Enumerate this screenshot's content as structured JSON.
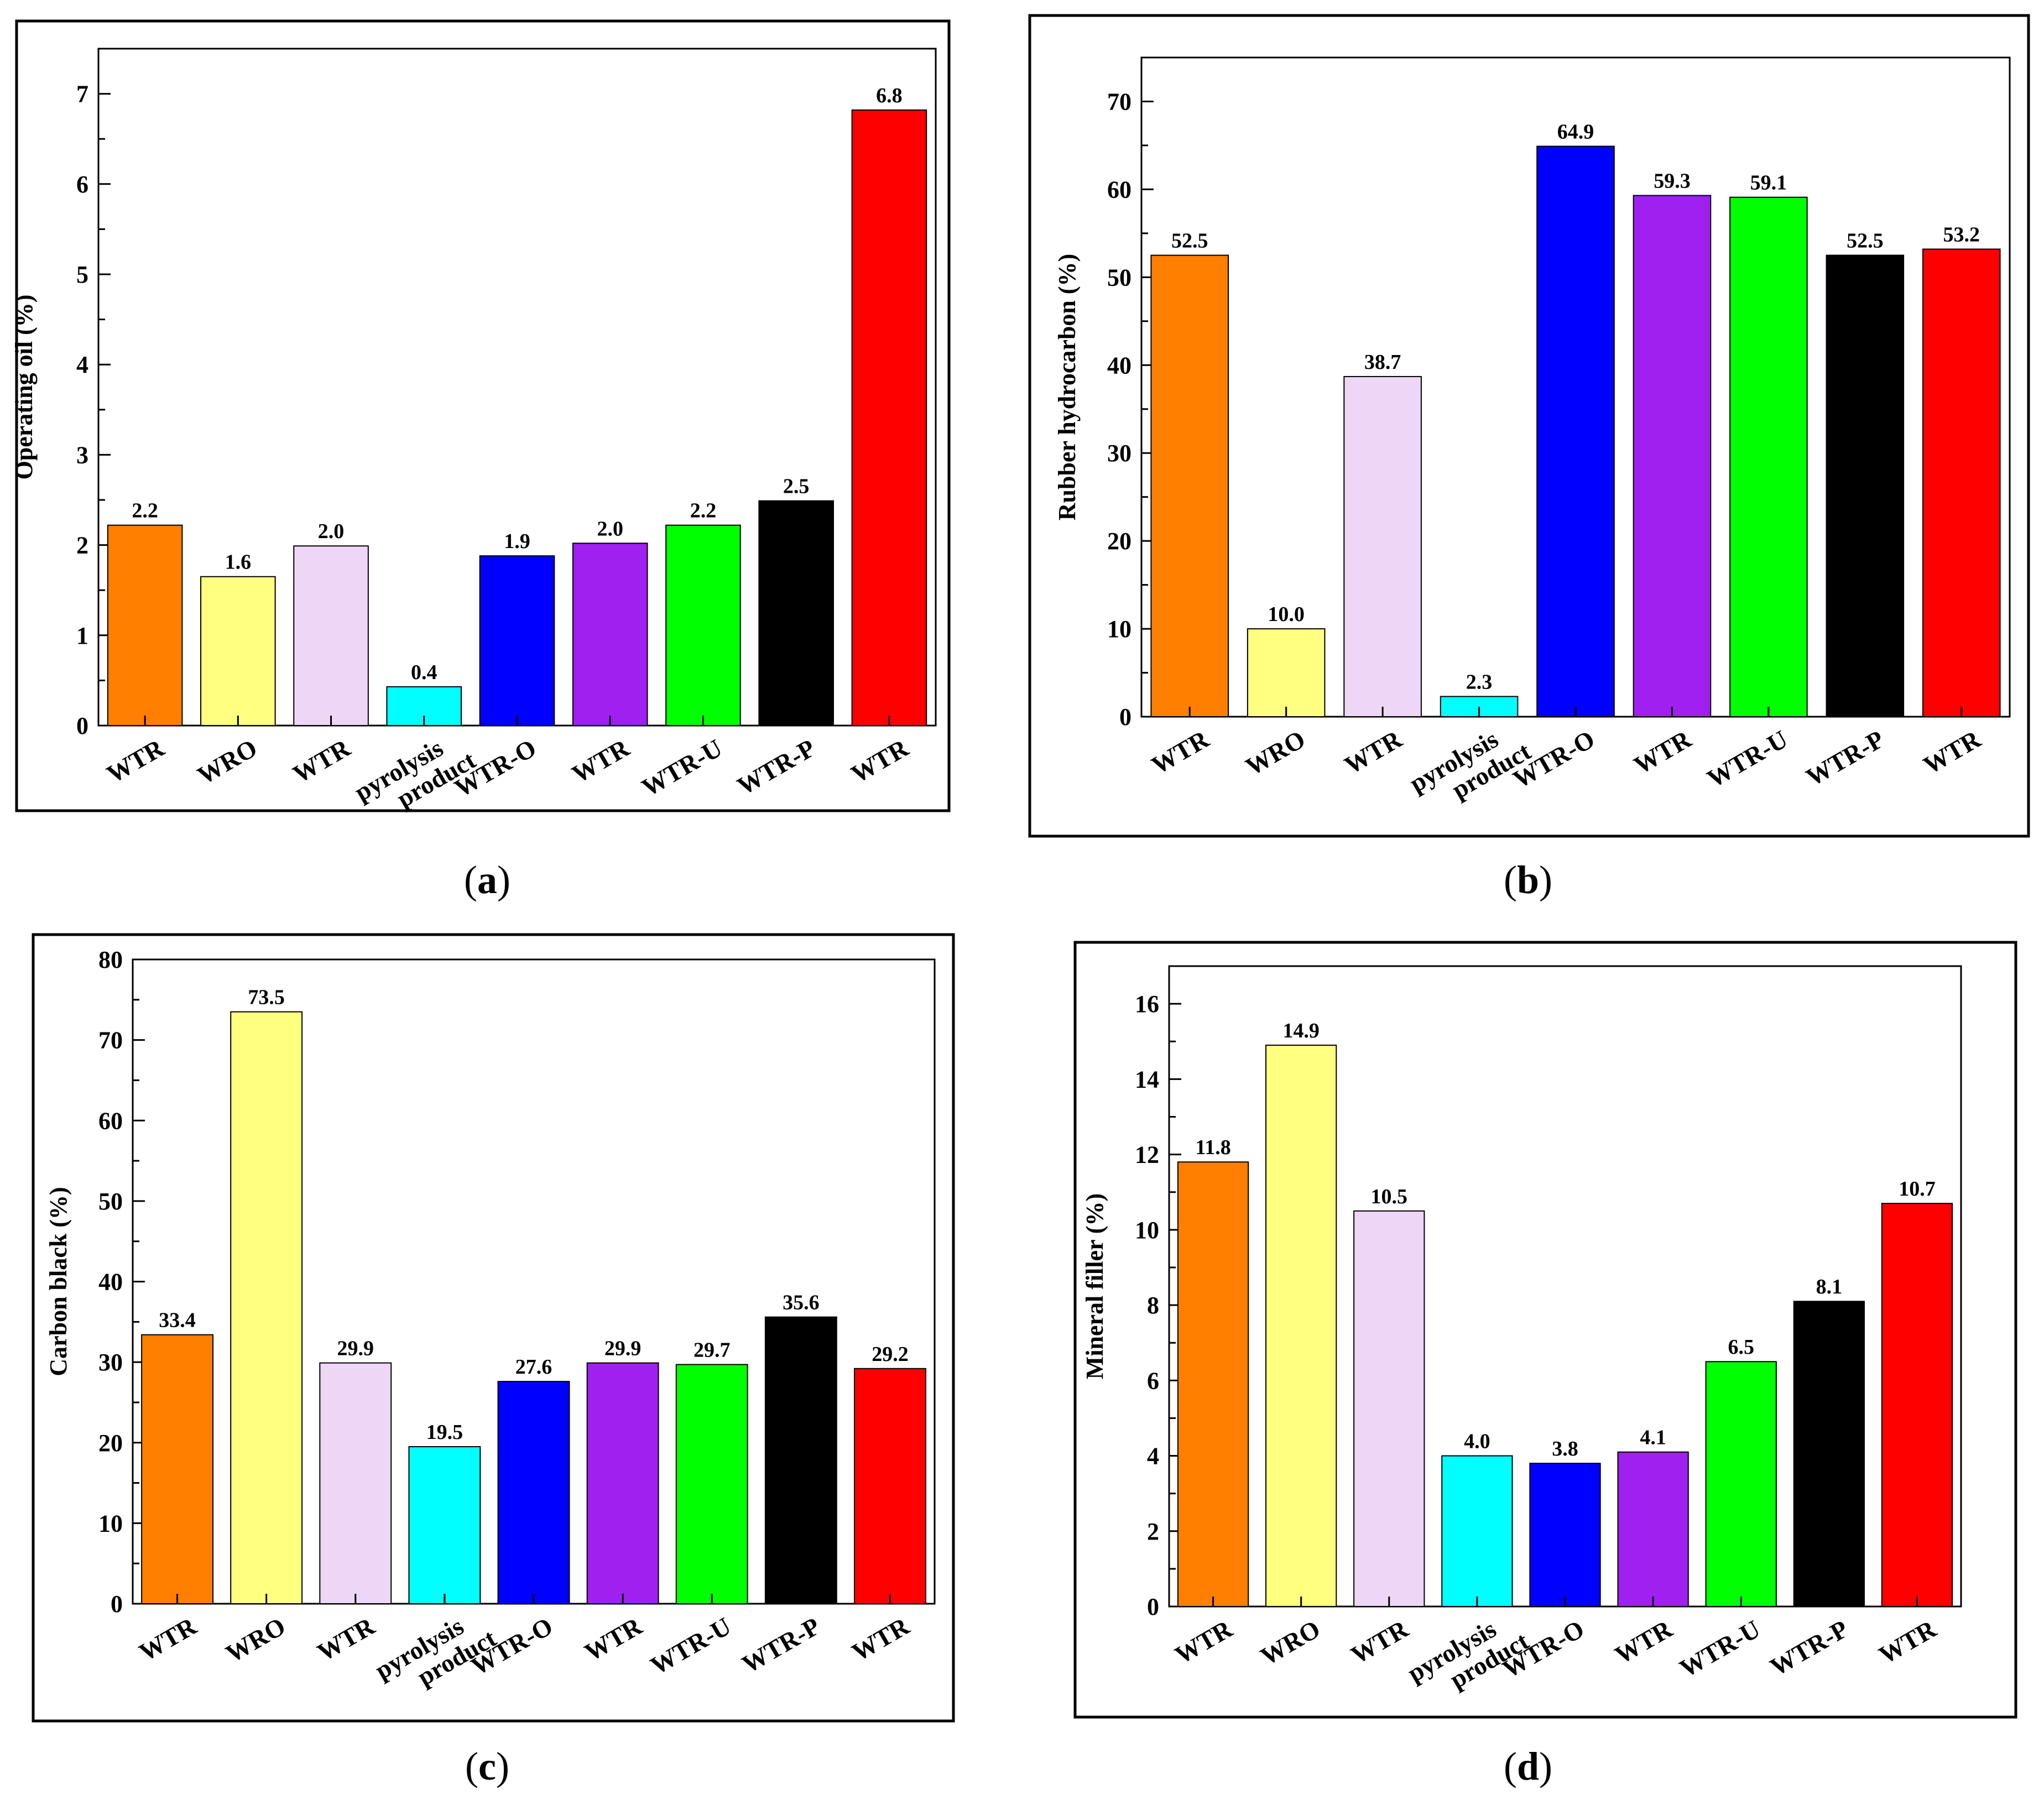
{
  "chart_data": [
    {
      "type": "bar",
      "panel": "(a)",
      "ylabel": "Operating oil (%)",
      "ylim": [
        0,
        7.5
      ],
      "yticks": [
        0,
        1,
        2,
        3,
        4,
        5,
        6,
        7
      ],
      "categories": [
        "WTR",
        "WRO",
        "WTR",
        "pyrolysis product",
        "WTR-O",
        "WTR",
        "WTR-U",
        "WTR-P",
        "WTR"
      ],
      "values": [
        2.2,
        1.6,
        2.0,
        0.4,
        1.9,
        2.0,
        2.2,
        2.5,
        6.8
      ],
      "display_values": [
        2.22,
        1.65,
        1.99,
        0.43,
        1.88,
        2.02,
        2.22,
        2.49,
        6.82
      ],
      "labels": [
        "2.2",
        "1.6",
        "2.0",
        "0.4",
        "1.9",
        "2.0",
        "2.2",
        "2.5",
        "6.8"
      ],
      "colors": [
        "#FF7F00",
        "#FFFF80",
        "#EED6F7",
        "#00FFFF",
        "#0000FF",
        "#A020F0",
        "#00FF00",
        "#000000",
        "#FF0000"
      ]
    },
    {
      "type": "bar",
      "panel": "(b)",
      "ylabel": "Rubber hydrocarbon (%)",
      "ylim": [
        0,
        75
      ],
      "yticks": [
        0,
        10,
        20,
        30,
        40,
        50,
        60,
        70
      ],
      "categories": [
        "WTR",
        "WRO",
        "WTR",
        "pyrolysis product",
        "WTR-O",
        "WTR",
        "WTR-U",
        "WTR-P",
        "WTR"
      ],
      "values": [
        52.5,
        10.0,
        38.7,
        2.3,
        64.9,
        59.3,
        59.1,
        52.5,
        53.2
      ],
      "labels": [
        "52.5",
        "10.0",
        "38.7",
        "2.3",
        "64.9",
        "59.3",
        "59.1",
        "52.5",
        "53.2"
      ],
      "colors": [
        "#FF7F00",
        "#FFFF80",
        "#EED6F7",
        "#00FFFF",
        "#0000FF",
        "#A020F0",
        "#00FF00",
        "#000000",
        "#FF0000"
      ]
    },
    {
      "type": "bar",
      "panel": "(c)",
      "ylabel": "Carbon black (%)",
      "ylim": [
        0,
        80
      ],
      "yticks": [
        0,
        10,
        20,
        30,
        40,
        50,
        60,
        70,
        80
      ],
      "categories": [
        "WTR",
        "WRO",
        "WTR",
        "pyrolysis product",
        "WTR-O",
        "WTR",
        "WTR-U",
        "WTR-P",
        "WTR"
      ],
      "values": [
        33.4,
        73.5,
        29.9,
        19.5,
        27.6,
        29.9,
        29.7,
        35.6,
        29.2
      ],
      "labels": [
        "33.4",
        "73.5",
        "29.9",
        "19.5",
        "27.6",
        "29.9",
        "29.7",
        "35.6",
        "29.2"
      ],
      "colors": [
        "#FF7F00",
        "#FFFF80",
        "#EED6F7",
        "#00FFFF",
        "#0000FF",
        "#A020F0",
        "#00FF00",
        "#000000",
        "#FF0000"
      ]
    },
    {
      "type": "bar",
      "panel": "(d)",
      "ylabel": "Mineral filler (%)",
      "ylim": [
        0,
        17
      ],
      "yticks": [
        0,
        2,
        4,
        6,
        8,
        10,
        12,
        14,
        16
      ],
      "categories": [
        "WTR",
        "WRO",
        "WTR",
        "pyrolysis product",
        "WTR-O",
        "WTR",
        "WTR-U",
        "WTR-P",
        "WTR"
      ],
      "values": [
        11.8,
        14.9,
        10.5,
        4.0,
        3.8,
        4.1,
        6.5,
        8.1,
        10.7
      ],
      "labels": [
        "11.8",
        "14.9",
        "10.5",
        "4.0",
        "3.8",
        "4.1",
        "6.5",
        "8.1",
        "10.7"
      ],
      "colors": [
        "#FF7F00",
        "#FFFF80",
        "#EED6F7",
        "#00FFFF",
        "#0000FF",
        "#A020F0",
        "#00FF00",
        "#000000",
        "#FF0000"
      ]
    }
  ]
}
